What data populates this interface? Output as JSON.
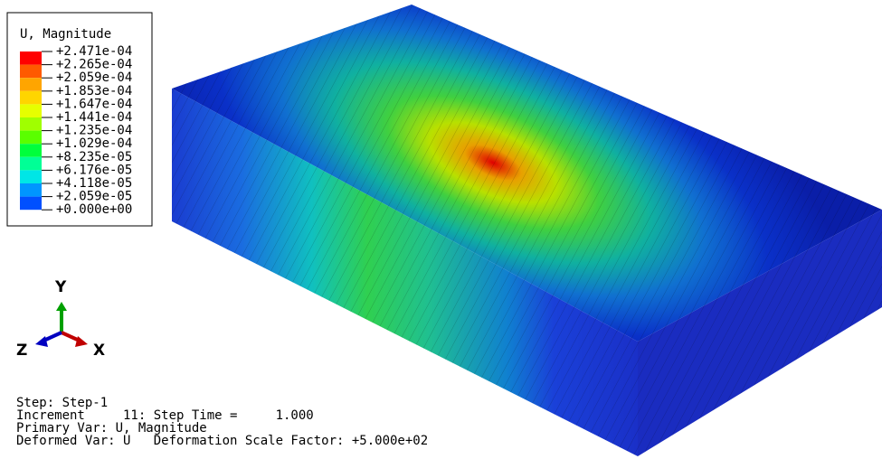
{
  "legend": {
    "title": "U, Magnitude",
    "labels": [
      "+2.471e-04",
      "+2.265e-04",
      "+2.059e-04",
      "+1.853e-04",
      "+1.647e-04",
      "+1.441e-04",
      "+1.235e-04",
      "+1.029e-04",
      "+8.235e-05",
      "+6.176e-05",
      "+4.118e-05",
      "+2.059e-05",
      "+0.000e+00"
    ],
    "colors": [
      "#ff0000",
      "#ff5a00",
      "#ffa500",
      "#ffd500",
      "#e6ff00",
      "#a0ff00",
      "#5aff00",
      "#00ff3c",
      "#00ff96",
      "#00e6e6",
      "#0096ff",
      "#0050ff",
      "#0000ff"
    ]
  },
  "triad": {
    "y": "Y",
    "z": "Z",
    "x": "X"
  },
  "info": [
    "Step: Step-1",
    "Increment     11: Step Time =     1.000",
    "Primary Var: U, Magnitude",
    "Deformed Var: U   Deformation Scale Factor: +5.000e+02"
  ]
}
